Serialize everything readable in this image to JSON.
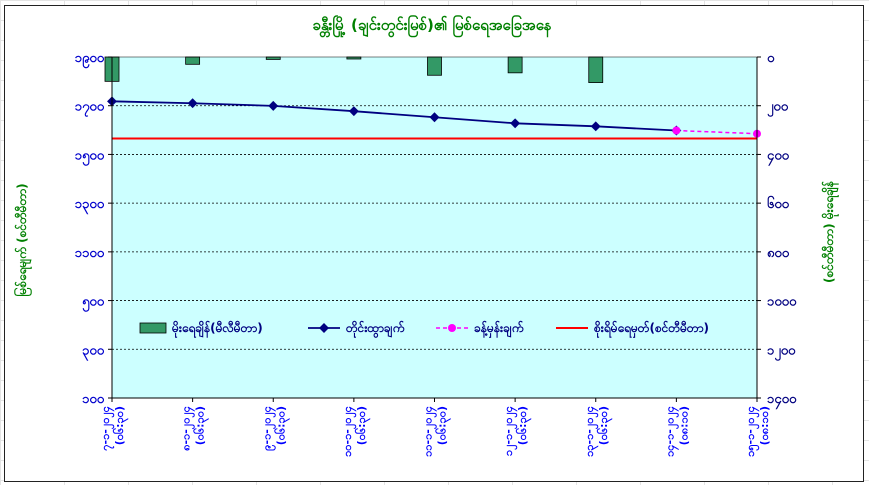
{
  "chart_data": {
    "type": "bar+line",
    "title": "ခန္တီးမြို့ (ချင်းတွင်းမြစ်)၏ မြစ်ရေအခြေအနေ",
    "ylabel_left": "မြစ်ရေမျက် (စင်တီမီတာ)",
    "ylabel_right": "(စင်တီမီတာ) မိုးရေချိန်",
    "left_axis": {
      "min": 100,
      "max": 1900,
      "ticks": [
        "၁၀၀",
        "၃၀၀",
        "၅၀၀",
        "၁၁၀၀",
        "၁၃၀၀",
        "၁၅၀၀",
        "၁၇၀၀",
        "၁၉၀၀"
      ]
    },
    "right_axis": {
      "min": 0,
      "max": 1400,
      "inverted": true,
      "ticks": [
        "၀",
        "၂၀၀",
        "၄၀၀",
        "၆၀၀",
        "၈၀၀",
        "၁၀၀၀",
        "၁၂၀၀",
        "၁၄၀၀"
      ]
    },
    "categories": [
      [
        "၇-၁-၂၀၂၄",
        "(၀၆:၃၀)"
      ],
      [
        "၈-၁-၂၀၂၄",
        "(၀၆:၃၀)"
      ],
      [
        "၉-၁-၂၀၂၄",
        "(၀၆:၃၀)"
      ],
      [
        "၁၀-၁-၂၀၂၄",
        "(၀၆:၃၀)"
      ],
      [
        "၁၁-၁-၂၀၂၄",
        "(၀၆:၃၀)"
      ],
      [
        "၁၂-၁-၂၀၂၄",
        "(၀၆:၃၀)"
      ],
      [
        "၁၃-၁-၂၀၂၄",
        "(၀၆:၃၀)"
      ],
      [
        "၁၄-၁-၂၀၂၄",
        "(၀၈:၁၀)"
      ],
      [
        "၁၅-၁-၂၀၂၄",
        "(၀၈:၁၀)"
      ]
    ],
    "series": [
      {
        "name": "မိုးရေချိန်(မီလီမီတာ)",
        "type": "bar",
        "axis": "right",
        "color": "#339966",
        "values": [
          100,
          30,
          10,
          5,
          75,
          65,
          105,
          null,
          null
        ]
      },
      {
        "name": "တိုင်းထွာချက်",
        "type": "line",
        "axis": "left",
        "color": "#000080",
        "values": [
          1666,
          1656,
          1642,
          1614,
          1582,
          1550,
          1534,
          1512,
          null
        ]
      },
      {
        "name": "ခန့်မှန်းချက်",
        "type": "line",
        "dashed": true,
        "axis": "left",
        "color": "#ff00ff",
        "values": [
          null,
          null,
          null,
          null,
          null,
          null,
          null,
          1512,
          1495
        ]
      },
      {
        "name": "စိုးရိမ်ရေမှတ်(စင်တီမီတာ)",
        "type": "hline",
        "axis": "left",
        "color": "#ff0000",
        "value": 1470
      }
    ],
    "legend_position": "inside-bottom",
    "grid": true
  },
  "colors": {
    "plot_bg": "#ccffff",
    "title": "#008000",
    "left_axis": "#0000cc",
    "right_axis": "#000080",
    "right_label": "#008000",
    "categories": "#0000ff"
  }
}
